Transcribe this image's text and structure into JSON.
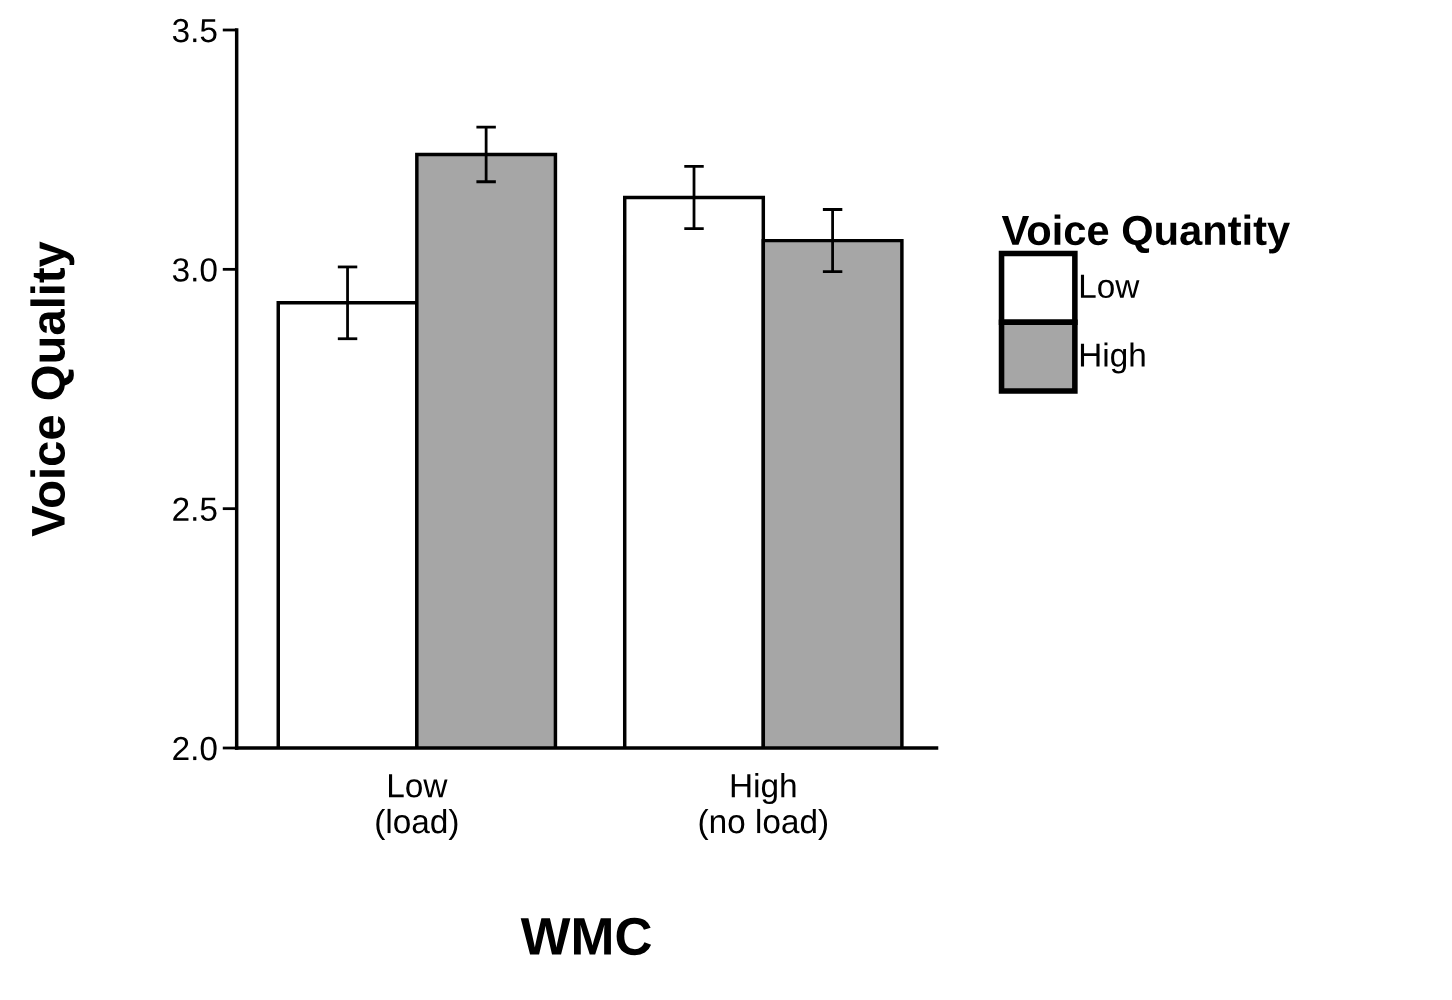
{
  "chart_data": {
    "type": "bar",
    "xlabel": "WMC",
    "ylabel": "Voice Quality",
    "legend_title": "Voice Quantity",
    "categories": [
      "Low\n(load)",
      "High\n(no load)"
    ],
    "series": [
      {
        "name": "Low",
        "color": "#ffffff",
        "values": [
          2.93,
          3.15
        ],
        "errors": [
          0.075,
          0.065
        ]
      },
      {
        "name": "High",
        "color": "#a6a6a6",
        "values": [
          3.24,
          3.06
        ],
        "errors": [
          0.057,
          0.065
        ]
      }
    ],
    "ylim": [
      2.0,
      3.5
    ],
    "yticks": [
      {
        "value": 2.0,
        "label": "2.0"
      },
      {
        "value": 2.5,
        "label": "2.5"
      },
      {
        "value": 3.0,
        "label": "3.0"
      },
      {
        "value": 3.5,
        "label": "3.5"
      }
    ],
    "grid": false,
    "legend": "right"
  }
}
